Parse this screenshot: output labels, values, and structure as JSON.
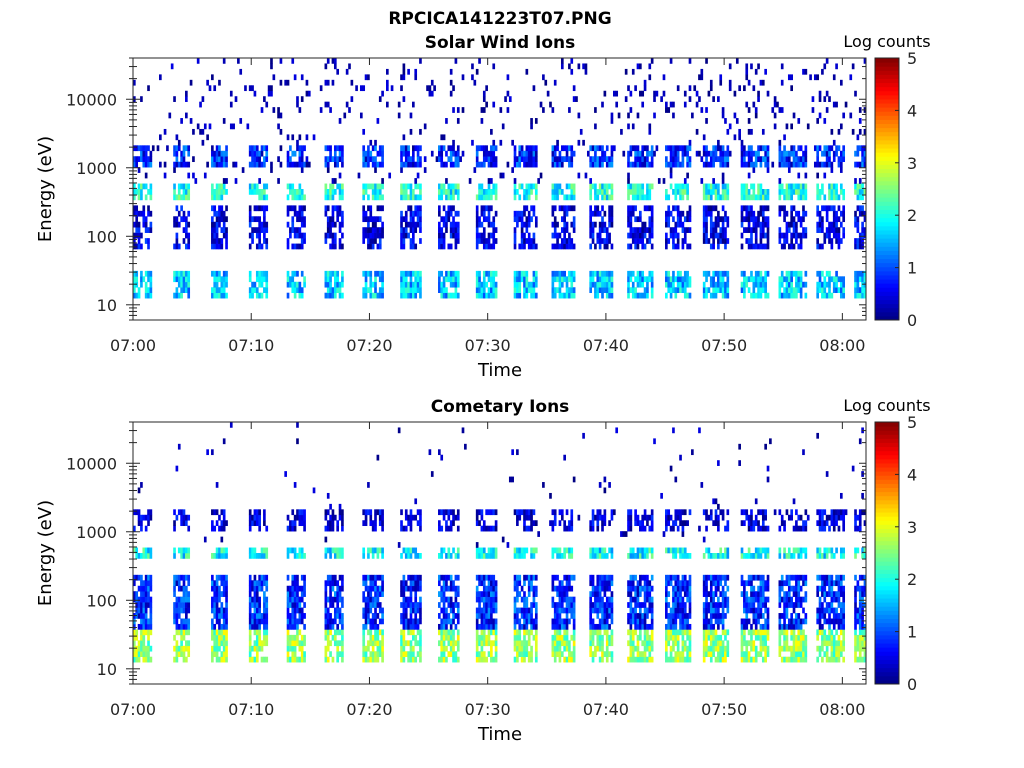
{
  "figure_title": "RPCICA141223T07.PNG",
  "chart_data": [
    {
      "type": "heatmap",
      "title": "Solar Wind Ions",
      "xlabel": "Time",
      "ylabel": "Energy (eV)",
      "yscale": "log",
      "ylim": [
        6,
        40000
      ],
      "xlim": [
        "07:00",
        "08:02"
      ],
      "xticks": [
        "07:00",
        "07:10",
        "07:20",
        "07:30",
        "07:40",
        "07:50",
        "08:00"
      ],
      "yticks": [
        {
          "value": 10,
          "label": "10"
        },
        {
          "value": 100,
          "label": "100"
        },
        {
          "value": 1000,
          "label": "1000"
        },
        {
          "value": 10000,
          "label": "10000"
        }
      ],
      "colorbar": {
        "label": "Log counts",
        "min": 0,
        "max": 5,
        "ticks": [
          "0",
          "1",
          "2",
          "3",
          "4",
          "5"
        ],
        "colormap": "jet"
      },
      "sweep_period_minutes": [
        3.2,
        3.2,
        3.2,
        3.2,
        3.2
      ],
      "bands": [
        {
          "energy_eV": [
            13,
            32
          ],
          "log_counts": 1.6
        },
        {
          "energy_eV": [
            350,
            600
          ],
          "log_counts": 2.0
        },
        {
          "energy_eV": [
            1100,
            2000
          ],
          "log_counts": 0.8
        },
        {
          "energy_eV": [
            60,
            260
          ],
          "log_counts": 0.4
        }
      ],
      "grid": false
    },
    {
      "type": "heatmap",
      "title": "Cometary Ions",
      "xlabel": "Time",
      "ylabel": "Energy (eV)",
      "yscale": "log",
      "ylim": [
        6,
        40000
      ],
      "xlim": [
        "07:00",
        "08:02"
      ],
      "xticks": [
        "07:00",
        "07:10",
        "07:20",
        "07:30",
        "07:40",
        "07:50",
        "08:00"
      ],
      "yticks": [
        {
          "value": 10,
          "label": "10"
        },
        {
          "value": 100,
          "label": "100"
        },
        {
          "value": 1000,
          "label": "1000"
        },
        {
          "value": 10000,
          "label": "10000"
        }
      ],
      "colorbar": {
        "label": "Log counts",
        "min": 0,
        "max": 5,
        "ticks": [
          "0",
          "1",
          "2",
          "3",
          "4",
          "5"
        ],
        "colormap": "jet"
      },
      "bands": [
        {
          "energy_eV": [
            13,
            35
          ],
          "log_counts": 2.6
        },
        {
          "energy_eV": [
            40,
            250
          ],
          "log_counts": 0.8
        },
        {
          "energy_eV": [
            380,
            560
          ],
          "log_counts": 1.9
        },
        {
          "energy_eV": [
            1100,
            2200
          ],
          "log_counts": 0.3
        }
      ],
      "grid": false
    }
  ]
}
